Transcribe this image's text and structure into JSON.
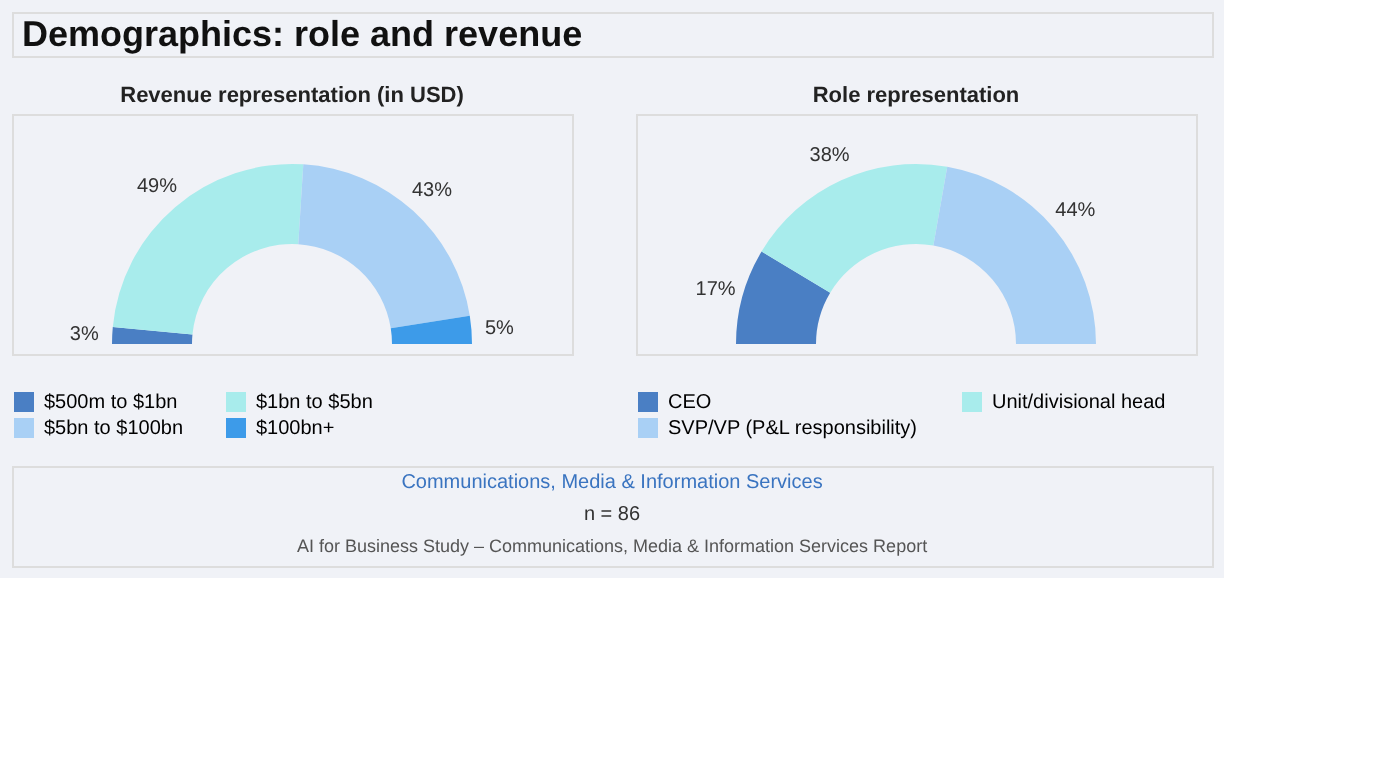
{
  "chart_data": [
    {
      "type": "donut",
      "title": "Revenue representation (in USD)",
      "categories": [
        "$500m to $1bn",
        "$1bn to $5bn",
        "$5bn to $100bn",
        "$100bn+"
      ],
      "values": [
        3,
        49,
        43,
        5
      ],
      "colors": [
        "#4a7fc4",
        "#a8ecec",
        "#a9d0f5",
        "#3d9be9"
      ],
      "value_labels": [
        "3%",
        "49%",
        "43%",
        "5%"
      ],
      "legend": "bottom",
      "annotations": [
        "Demographics: role and revenue",
        "Communications, Media & Information Services",
        "n = 86",
        "AI for Business Study – Communications, Media & Information Services Report"
      ]
    },
    {
      "type": "donut",
      "title": "Role representation",
      "categories": [
        "CEO",
        "Unit/divisional head",
        "SVP/VP (P&L responsibility)"
      ],
      "values": [
        17,
        38,
        44
      ],
      "colors": [
        "#4a7fc4",
        "#a8ecec",
        "#a9d0f5"
      ],
      "value_labels": [
        "17%",
        "38%",
        "44%"
      ],
      "legend": "bottom"
    }
  ]
}
